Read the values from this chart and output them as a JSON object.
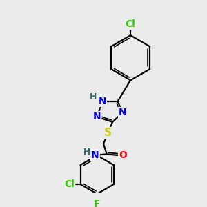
{
  "bg_color": "#ebebeb",
  "line_color": "#000000",
  "bond_lw": 1.6,
  "atom_colors": {
    "N": "#0000ee",
    "S": "#cccc00",
    "O": "#ff0000",
    "Cl": "#33cc00",
    "F": "#33cc00",
    "H": "#336666"
  }
}
